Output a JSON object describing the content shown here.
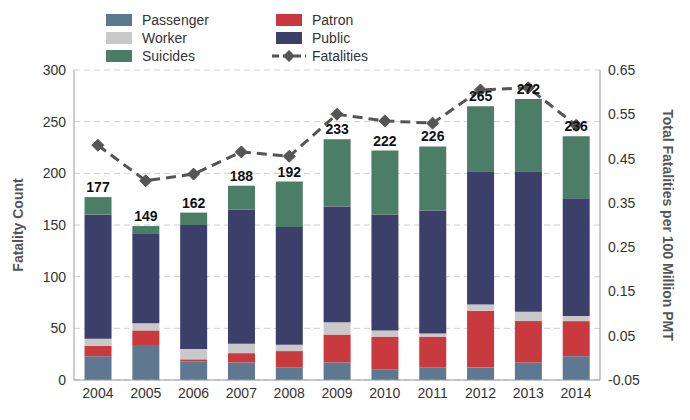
{
  "chart_data": {
    "type": "bar",
    "stacked": true,
    "grid": true,
    "legend": "top",
    "categories": [
      "2004",
      "2005",
      "2006",
      "2007",
      "2008",
      "2009",
      "2010",
      "2011",
      "2012",
      "2013",
      "2014"
    ],
    "totals": [
      177,
      149,
      162,
      188,
      192,
      233,
      222,
      226,
      265,
      272,
      236
    ],
    "ylabel": "Fatality Count",
    "y2label": "Total Fatalities per 100 Million PMT",
    "ylim": [
      0,
      300
    ],
    "yticks": [
      0,
      50,
      100,
      150,
      200,
      250,
      300
    ],
    "y2lim": [
      -0.05,
      0.65
    ],
    "y2ticks": [
      -0.05,
      0.05,
      0.15,
      0.25,
      0.35,
      0.45,
      0.55,
      0.65
    ],
    "series": [
      {
        "name": "Passenger",
        "type": "bar",
        "color": "#5f7892",
        "values": [
          23,
          33,
          18,
          17,
          12,
          17,
          10,
          12,
          12,
          17,
          23
        ]
      },
      {
        "name": "Patron",
        "type": "bar",
        "color": "#c93a3e",
        "values": [
          10,
          15,
          2,
          9,
          16,
          27,
          32,
          30,
          55,
          40,
          34
        ]
      },
      {
        "name": "Worker",
        "type": "bar",
        "color": "#c9c9c9",
        "values": [
          7,
          7,
          10,
          9,
          6,
          12,
          6,
          3,
          6,
          9,
          5
        ]
      },
      {
        "name": "Public",
        "type": "bar",
        "color": "#3b3f69",
        "values": [
          120,
          87,
          120,
          130,
          114,
          112,
          112,
          119,
          129,
          136,
          114
        ]
      },
      {
        "name": "Suicides",
        "type": "bar",
        "color": "#4c7d66",
        "values": [
          17,
          7,
          12,
          23,
          44,
          65,
          62,
          62,
          63,
          70,
          60
        ]
      },
      {
        "name": "Fatalities",
        "type": "line",
        "axis": "y2",
        "color": "#555555",
        "marker": "diamond",
        "line_style": "dashed",
        "values": [
          0.48,
          0.4,
          0.415,
          0.465,
          0.455,
          0.55,
          0.535,
          0.53,
          0.605,
          0.61,
          0.525
        ]
      }
    ]
  }
}
